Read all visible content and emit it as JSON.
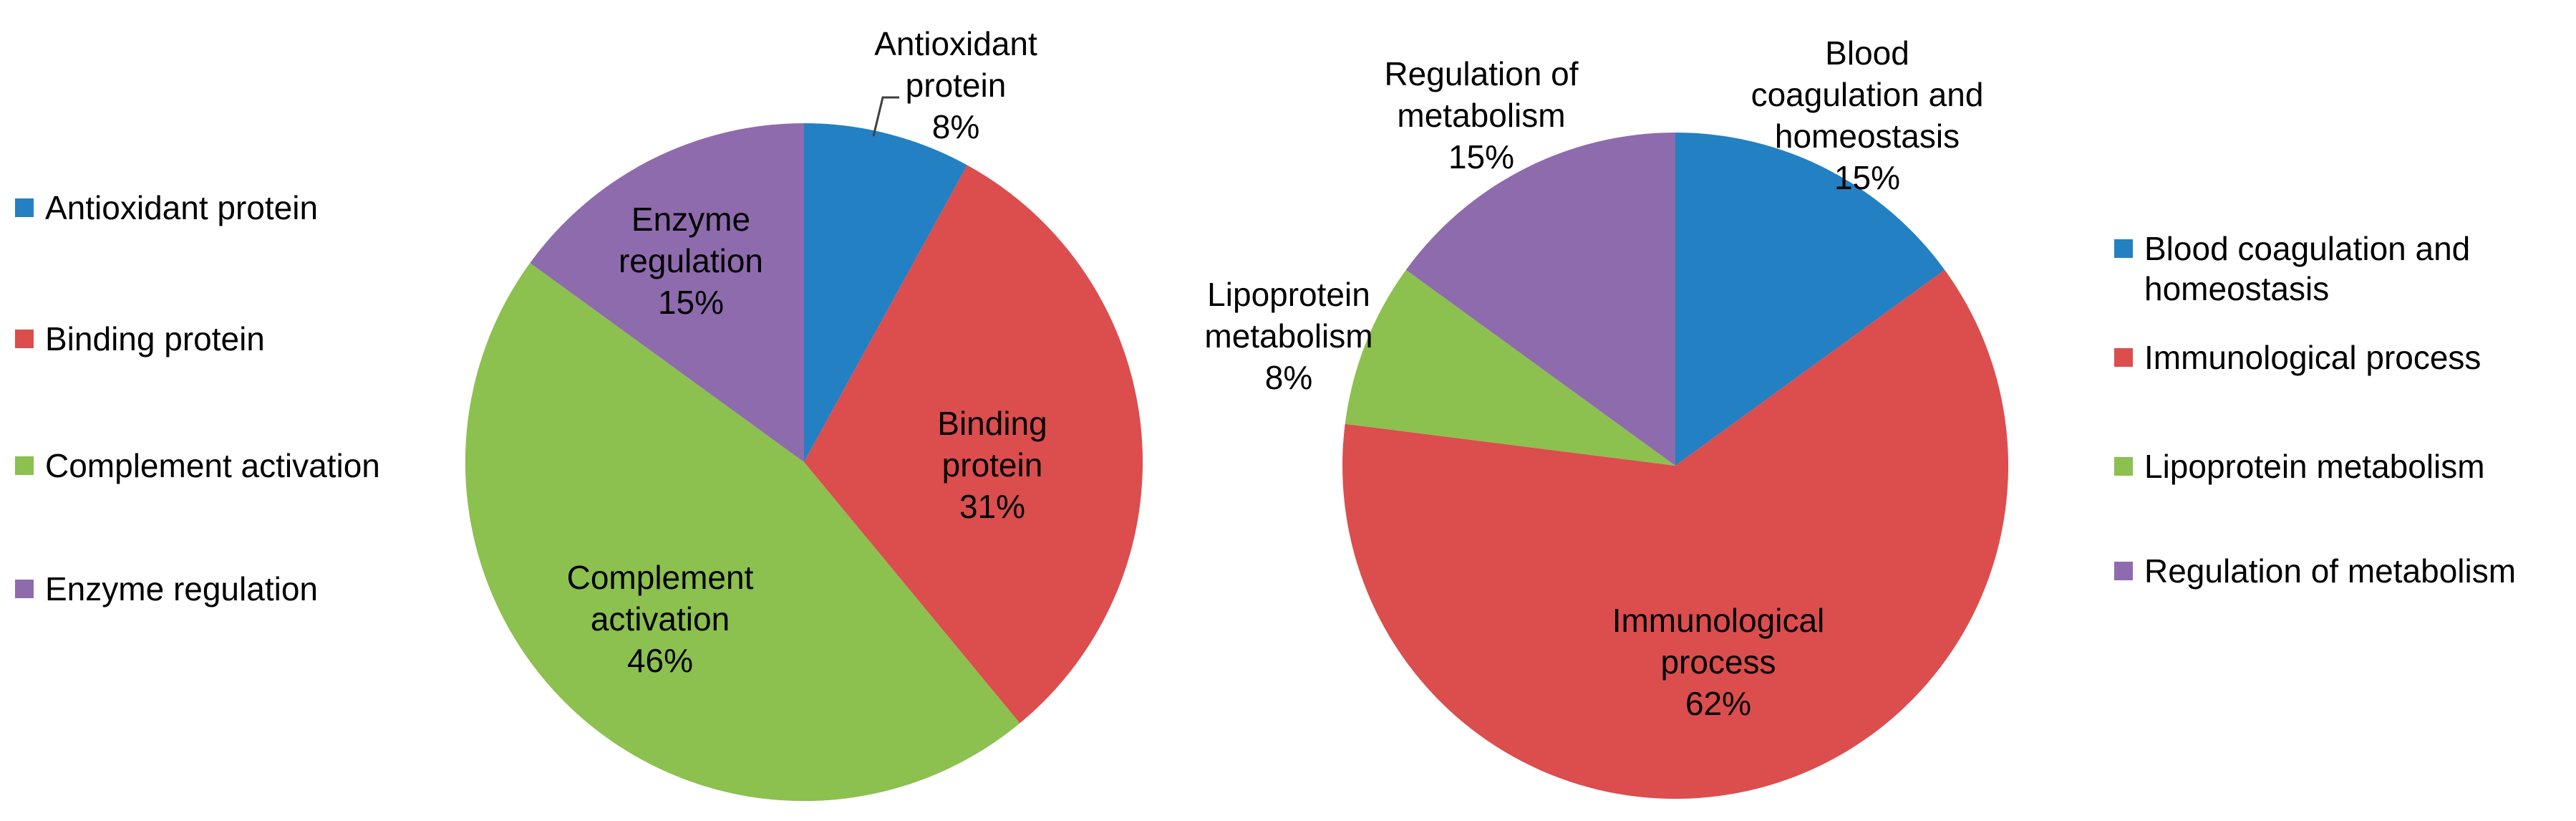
{
  "page": {
    "background": "#ffffff"
  },
  "chart_data": [
    {
      "id": "protein-functions-pie",
      "type": "pie",
      "legend_position": "left",
      "direction": "clockwise",
      "start_angle": "12-oclock",
      "categories": [
        "Antioxidant protein",
        "Binding protein",
        "Complement activation",
        "Enzyme regulation"
      ],
      "values": [
        8,
        31,
        46,
        15
      ],
      "unit": "%",
      "colors": [
        "#2380C2",
        "#DC4D4D",
        "#8CC04F",
        "#8E6BAD"
      ],
      "legend": [
        "Antioxidant protein",
        "Binding protein",
        "Complement activation",
        "Enzyme regulation"
      ],
      "slice_labels": [
        {
          "text": "Antioxidant\nprotein\n8%",
          "placement": "outside-callout"
        },
        {
          "text": "Binding\nprotein\n31%",
          "placement": "inside"
        },
        {
          "text": "Complement\nactivation\n46%",
          "placement": "inside"
        },
        {
          "text": "Enzyme\nregulation\n15%",
          "placement": "inside"
        }
      ],
      "callout_line_color": "#404040"
    },
    {
      "id": "biological-processes-pie",
      "type": "pie",
      "legend_position": "right",
      "direction": "clockwise",
      "start_angle": "12-oclock",
      "categories": [
        "Blood coagulation and homeostasis",
        "Immunological process",
        "Lipoprotein metabolism",
        "Regulation of metabolism"
      ],
      "values": [
        15,
        62,
        8,
        15
      ],
      "unit": "%",
      "colors": [
        "#2380C2",
        "#DC4D4D",
        "#8CC04F",
        "#8E6BAD"
      ],
      "legend": [
        "Blood coagulation and homeostasis",
        "Immunological process",
        "Lipoprotein metabolism",
        "Regulation of metabolism"
      ],
      "slice_labels": [
        {
          "text": "Blood\ncoagulation and\nhomeostasis\n15%",
          "placement": "outside"
        },
        {
          "text": "Immunological\nprocess\n62%",
          "placement": "inside"
        },
        {
          "text": "Lipoprotein\nmetabolism\n8%",
          "placement": "outside"
        },
        {
          "text": "Regulation of\nmetabolism\n15%",
          "placement": "outside"
        }
      ]
    }
  ]
}
